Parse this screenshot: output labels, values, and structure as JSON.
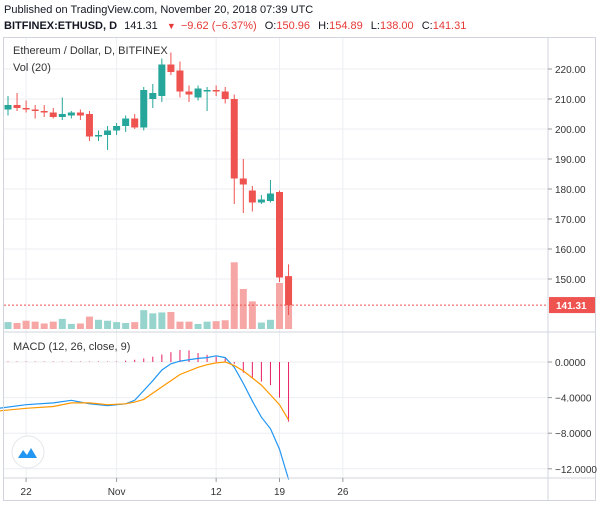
{
  "header": {
    "published": "Published on TradingView.com, November 20, 2018 07:39 UTC",
    "symbol": "BITFINEX:ETHUSD, D",
    "last": "141.31",
    "change": "−9.62 (−6.37%)",
    "open_label": "O:",
    "open": "150.96",
    "high_label": "H:",
    "high": "154.89",
    "low_label": "L:",
    "low": "138.00",
    "close_label": "C:",
    "close": "141.31"
  },
  "main_panel": {
    "title": "Ethereum / Dollar, D, BITFINEX",
    "volume_label": "Vol (20)",
    "last_price_label": "141.31"
  },
  "macd_panel": {
    "title": "MACD (12, 26, close, 9)"
  },
  "colors": {
    "up": "#26a69a",
    "down": "#ef5350",
    "vol_up": "#97d4cd",
    "vol_down": "#f6a6a5",
    "macd_line": "#2196f3",
    "signal_line": "#ff9800",
    "histogram": "#e91e63",
    "price_line": "#ef5350",
    "grid": "#eceef2",
    "axis_text": "#333333"
  },
  "chart_data": [
    {
      "type": "candlestick",
      "title": "Ethereum / Dollar, D, BITFINEX",
      "price_axis_ticks": [
        150,
        160,
        170,
        180,
        190,
        200,
        210,
        220
      ],
      "price_axis_labels": [
        "150.00",
        "160.00",
        "170.00",
        "180.00",
        "190.00",
        "200.00",
        "210.00",
        "220.00"
      ],
      "ylim": [
        135,
        233
      ],
      "x_ticks": [
        {
          "day": 2,
          "label": "22"
        },
        {
          "day": 12,
          "label": "Nov"
        },
        {
          "day": 23,
          "label": "12"
        },
        {
          "day": 30,
          "label": "19"
        },
        {
          "day": 37,
          "label": "26"
        }
      ],
      "last_price": 141.31,
      "candles": [
        {
          "day": 0,
          "o": 206.5,
          "h": 211.0,
          "l": 204.5,
          "c": 208.0
        },
        {
          "day": 1,
          "o": 208.0,
          "h": 212.0,
          "l": 206.0,
          "c": 207.0
        },
        {
          "day": 2,
          "o": 207.0,
          "h": 209.5,
          "l": 205.5,
          "c": 206.5
        },
        {
          "day": 3,
          "o": 206.5,
          "h": 208.0,
          "l": 203.5,
          "c": 206.0
        },
        {
          "day": 4,
          "o": 206.0,
          "h": 208.0,
          "l": 204.0,
          "c": 205.5
        },
        {
          "day": 5,
          "o": 205.5,
          "h": 207.0,
          "l": 203.5,
          "c": 204.0
        },
        {
          "day": 6,
          "o": 204.0,
          "h": 210.5,
          "l": 203.0,
          "c": 205.0
        },
        {
          "day": 7,
          "o": 204.5,
          "h": 206.0,
          "l": 203.5,
          "c": 205.5
        },
        {
          "day": 8,
          "o": 205.5,
          "h": 206.5,
          "l": 203.0,
          "c": 204.5
        },
        {
          "day": 9,
          "o": 205.0,
          "h": 206.0,
          "l": 196.0,
          "c": 197.5
        },
        {
          "day": 10,
          "o": 197.5,
          "h": 199.5,
          "l": 196.0,
          "c": 198.0
        },
        {
          "day": 11,
          "o": 198.0,
          "h": 201.0,
          "l": 193.0,
          "c": 199.5
        },
        {
          "day": 12,
          "o": 199.5,
          "h": 202.0,
          "l": 198.0,
          "c": 201.0
        },
        {
          "day": 13,
          "o": 201.0,
          "h": 204.5,
          "l": 199.0,
          "c": 203.5
        },
        {
          "day": 14,
          "o": 203.5,
          "h": 205.0,
          "l": 200.0,
          "c": 200.5
        },
        {
          "day": 15,
          "o": 200.5,
          "h": 214.0,
          "l": 199.5,
          "c": 213.0
        },
        {
          "day": 16,
          "o": 210.0,
          "h": 215.0,
          "l": 207.0,
          "c": 212.0
        },
        {
          "day": 17,
          "o": 211.0,
          "h": 223.5,
          "l": 209.0,
          "c": 221.5
        },
        {
          "day": 18,
          "o": 221.5,
          "h": 225.5,
          "l": 218.0,
          "c": 219.0
        },
        {
          "day": 19,
          "o": 219.5,
          "h": 222.5,
          "l": 210.5,
          "c": 212.5
        },
        {
          "day": 20,
          "o": 212.5,
          "h": 214.5,
          "l": 209.0,
          "c": 211.5
        },
        {
          "day": 21,
          "o": 210.5,
          "h": 214.5,
          "l": 209.5,
          "c": 213.5
        },
        {
          "day": 22,
          "o": 212.5,
          "h": 214.0,
          "l": 206.0,
          "c": 213.0
        },
        {
          "day": 23,
          "o": 213.0,
          "h": 214.5,
          "l": 211.0,
          "c": 212.5
        },
        {
          "day": 24,
          "o": 212.5,
          "h": 214.0,
          "l": 208.5,
          "c": 210.0
        },
        {
          "day": 25,
          "o": 210.0,
          "h": 211.5,
          "l": 175.0,
          "c": 183.5
        },
        {
          "day": 26,
          "o": 183.5,
          "h": 190.0,
          "l": 172.0,
          "c": 181.5
        },
        {
          "day": 27,
          "o": 179.5,
          "h": 181.0,
          "l": 172.5,
          "c": 175.5
        },
        {
          "day": 28,
          "o": 175.5,
          "h": 178.0,
          "l": 175.0,
          "c": 176.5
        },
        {
          "day": 29,
          "o": 176.0,
          "h": 183.0,
          "l": 175.5,
          "c": 178.5
        },
        {
          "day": 30,
          "o": 179.0,
          "h": 179.5,
          "l": 149.0,
          "c": 150.5
        },
        {
          "day": 31,
          "o": 150.96,
          "h": 154.89,
          "l": 138.0,
          "c": 141.31
        }
      ],
      "volume": [
        0.15,
        0.13,
        0.18,
        0.16,
        0.12,
        0.16,
        0.22,
        0.11,
        0.12,
        0.27,
        0.2,
        0.18,
        0.15,
        0.13,
        0.15,
        0.41,
        0.34,
        0.36,
        0.37,
        0.16,
        0.16,
        0.11,
        0.16,
        0.17,
        0.19,
        1.45,
        0.87,
        0.6,
        0.14,
        0.2,
        1.0,
        0.53
      ]
    },
    {
      "type": "line",
      "title": "MACD (12, 26, close, 9)",
      "ylim": [
        -13.5,
        2.5
      ],
      "y_ticks": [
        0,
        -4,
        -8,
        -12
      ],
      "y_tick_labels": [
        "0.0000",
        "−4.0000",
        "−8.0000",
        "−12.0000"
      ],
      "series": [
        {
          "name": "MACD",
          "color": "#2196f3",
          "points": [
            [
              -1,
              -5.2
            ],
            [
              2,
              -4.8
            ],
            [
              5,
              -4.6
            ],
            [
              7,
              -4.3
            ],
            [
              8,
              -4.5
            ],
            [
              9,
              -4.7
            ],
            [
              11,
              -4.9
            ],
            [
              13,
              -4.7
            ],
            [
              14,
              -4.3
            ],
            [
              15,
              -3.2
            ],
            [
              16,
              -2.1
            ],
            [
              17,
              -0.9
            ],
            [
              18,
              -0.2
            ],
            [
              19,
              0.1
            ],
            [
              21,
              0.4
            ],
            [
              22,
              0.5
            ],
            [
              23,
              0.7
            ],
            [
              24,
              0.5
            ],
            [
              25,
              -0.6
            ],
            [
              26,
              -2.4
            ],
            [
              27,
              -4.4
            ],
            [
              28,
              -6.2
            ],
            [
              29,
              -7.5
            ],
            [
              30,
              -9.8
            ],
            [
              31,
              -13.2
            ]
          ]
        },
        {
          "name": "Signal",
          "color": "#ff9800",
          "points": [
            [
              -1,
              -5.5
            ],
            [
              2,
              -5.2
            ],
            [
              5,
              -5.0
            ],
            [
              7,
              -4.6
            ],
            [
              9,
              -4.6
            ],
            [
              11,
              -4.8
            ],
            [
              13,
              -4.7
            ],
            [
              14,
              -4.5
            ],
            [
              15,
              -4.2
            ],
            [
              16,
              -3.5
            ],
            [
              17,
              -2.8
            ],
            [
              18,
              -2.1
            ],
            [
              19,
              -1.4
            ],
            [
              21,
              -0.6
            ],
            [
              22,
              -0.3
            ],
            [
              23,
              -0.1
            ],
            [
              24,
              0.0
            ],
            [
              25,
              -0.4
            ],
            [
              26,
              -1.0
            ],
            [
              27,
              -1.8
            ],
            [
              28,
              -2.6
            ],
            [
              29,
              -3.7
            ],
            [
              30,
              -4.8
            ],
            [
              31,
              -6.5
            ]
          ]
        }
      ],
      "histogram": [
        {
          "day": 0,
          "v": 0.05
        },
        {
          "day": 1,
          "v": 0.05
        },
        {
          "day": 2,
          "v": 0.05
        },
        {
          "day": 3,
          "v": 0.05
        },
        {
          "day": 4,
          "v": 0.05
        },
        {
          "day": 5,
          "v": 0.05
        },
        {
          "day": 6,
          "v": 0.05
        },
        {
          "day": 7,
          "v": 0.05
        },
        {
          "day": 8,
          "v": 0.05
        },
        {
          "day": 9,
          "v": 0.05
        },
        {
          "day": 10,
          "v": 0.05
        },
        {
          "day": 11,
          "v": 0.05
        },
        {
          "day": 12,
          "v": 0.05
        },
        {
          "day": 13,
          "v": 0.15
        },
        {
          "day": 14,
          "v": 0.25
        },
        {
          "day": 15,
          "v": 0.4
        },
        {
          "day": 16,
          "v": 0.6
        },
        {
          "day": 17,
          "v": 0.85
        },
        {
          "day": 18,
          "v": 1.1
        },
        {
          "day": 19,
          "v": 1.35
        },
        {
          "day": 20,
          "v": 1.3
        },
        {
          "day": 21,
          "v": 1.0
        },
        {
          "day": 22,
          "v": 0.8
        },
        {
          "day": 23,
          "v": 0.6
        },
        {
          "day": 24,
          "v": 0.4
        },
        {
          "day": 25,
          "v": -0.2
        },
        {
          "day": 26,
          "v": -1.2
        },
        {
          "day": 27,
          "v": -1.8
        },
        {
          "day": 28,
          "v": -2.2
        },
        {
          "day": 29,
          "v": -2.6
        },
        {
          "day": 30,
          "v": -4.0
        },
        {
          "day": 31,
          "v": -6.7
        }
      ]
    }
  ]
}
